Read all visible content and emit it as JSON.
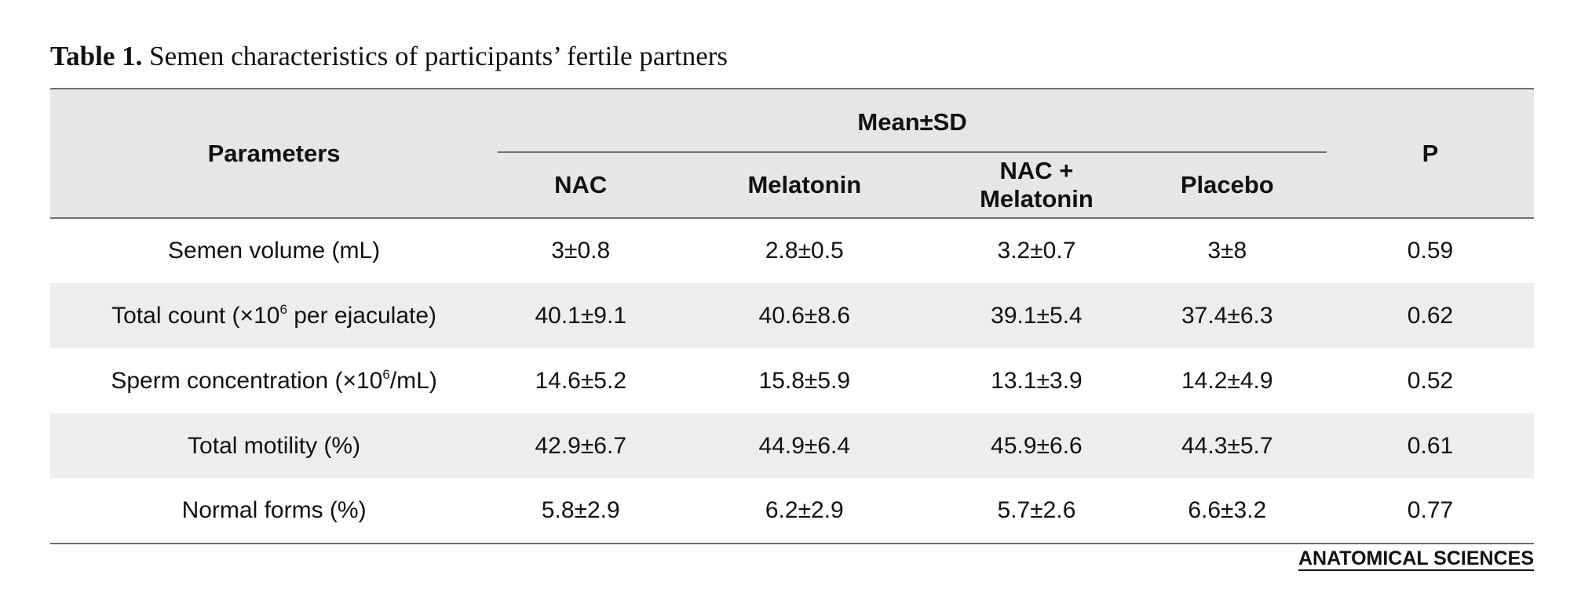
{
  "caption": {
    "label": "Table 1.",
    "text": " Semen characteristics of participants’ fertile partners"
  },
  "table": {
    "header": {
      "parameters": "Parameters",
      "mean_sd": "Mean±SD",
      "p": "P",
      "groups": [
        "NAC",
        "Melatonin",
        "NAC + Melatonin",
        "Placebo"
      ]
    },
    "rows": [
      {
        "label_pre": "Semen volume (mL)",
        "label_sup": "",
        "label_post": "",
        "values": [
          "3±0.8",
          "2.8±0.5",
          "3.2±0.7",
          "3±8"
        ],
        "p": "0.59"
      },
      {
        "label_pre": "Total count (×10",
        "label_sup": "6",
        "label_post": " per ejaculate)",
        "values": [
          "40.1±9.1",
          "40.6±8.6",
          "39.1±5.4",
          "37.4±6.3"
        ],
        "p": "0.62"
      },
      {
        "label_pre": "Sperm concentration (×10",
        "label_sup": "6",
        "label_post": "/mL)",
        "values": [
          "14.6±5.2",
          "15.8±5.9",
          "13.1±3.9",
          "14.2±4.9"
        ],
        "p": "0.52"
      },
      {
        "label_pre": "Total motility (%)",
        "label_sup": "",
        "label_post": "",
        "values": [
          "42.9±6.7",
          "44.9±6.4",
          "45.9±6.6",
          "44.3±5.7"
        ],
        "p": "0.61"
      },
      {
        "label_pre": "Normal forms (%)",
        "label_sup": "",
        "label_post": "",
        "values": [
          "5.8±2.9",
          "6.2±2.9",
          "5.7±2.6",
          "6.6±3.2"
        ],
        "p": "0.77"
      }
    ]
  },
  "logo": {
    "text": "ANATOMICAL SCIENCES"
  },
  "colors": {
    "header_bg": "#e7e6e6",
    "shaded_row_bg": "#ededed",
    "rule": "#6f6f6f"
  }
}
